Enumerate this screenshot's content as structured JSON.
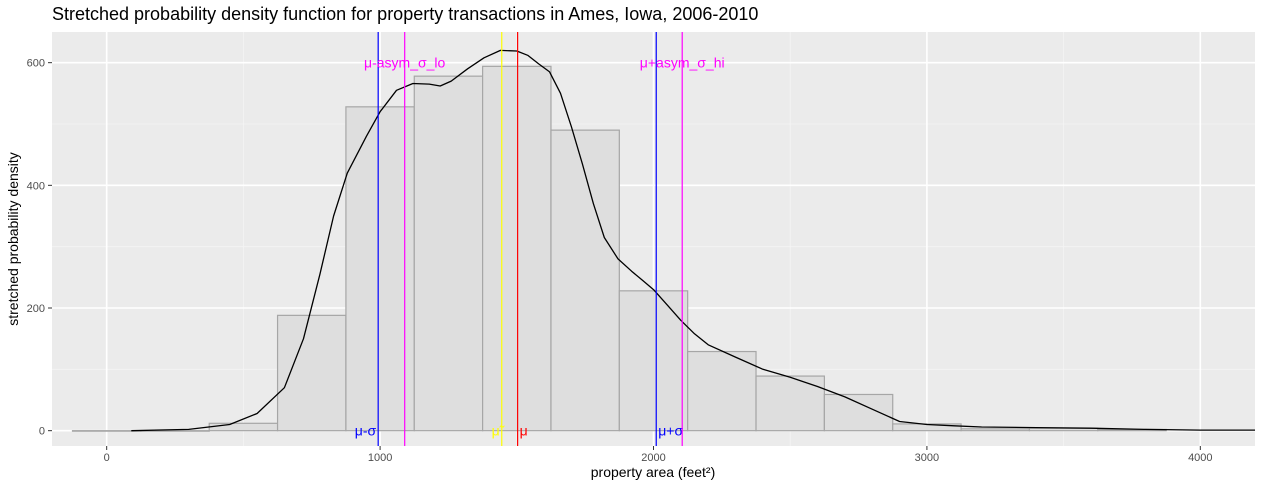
{
  "chart_data": {
    "type": "bar",
    "title": "Stretched probability density function for property transactions in Ames, Iowa, 2006-2010",
    "xlabel": "property area (feet²)",
    "ylabel": "stretched probability density",
    "xlim": [
      -200,
      4200
    ],
    "ylim": [
      -25,
      650
    ],
    "x_ticks": [
      0,
      1000,
      2000,
      3000,
      4000
    ],
    "y_ticks": [
      0,
      200,
      400,
      600
    ],
    "grid": true,
    "histogram": {
      "bin_width": 250,
      "bins": [
        {
          "start": -125,
          "end": 125,
          "count": 0
        },
        {
          "start": 125,
          "end": 375,
          "count": 0
        },
        {
          "start": 375,
          "end": 625,
          "count": 12
        },
        {
          "start": 625,
          "end": 875,
          "count": 188
        },
        {
          "start": 875,
          "end": 1125,
          "count": 528
        },
        {
          "start": 1125,
          "end": 1375,
          "count": 578
        },
        {
          "start": 1375,
          "end": 1625,
          "count": 594
        },
        {
          "start": 1625,
          "end": 1875,
          "count": 490
        },
        {
          "start": 1875,
          "end": 2125,
          "count": 228
        },
        {
          "start": 2125,
          "end": 2375,
          "count": 129
        },
        {
          "start": 2375,
          "end": 2625,
          "count": 89
        },
        {
          "start": 2625,
          "end": 2875,
          "count": 59
        },
        {
          "start": 2875,
          "end": 3125,
          "count": 11
        },
        {
          "start": 3125,
          "end": 3375,
          "count": 3
        },
        {
          "start": 3375,
          "end": 3625,
          "count": 4
        },
        {
          "start": 3625,
          "end": 3875,
          "count": 2
        }
      ],
      "fill": "#dedede",
      "stroke": "#a6a6a6"
    },
    "density_curve": {
      "color": "#000000",
      "points": [
        [
          90,
          0
        ],
        [
          300,
          2
        ],
        [
          450,
          10
        ],
        [
          550,
          28
        ],
        [
          650,
          70
        ],
        [
          720,
          150
        ],
        [
          780,
          255
        ],
        [
          830,
          350
        ],
        [
          880,
          420
        ],
        [
          950,
          480
        ],
        [
          1000,
          520
        ],
        [
          1060,
          555
        ],
        [
          1120,
          566
        ],
        [
          1180,
          565
        ],
        [
          1220,
          562
        ],
        [
          1260,
          570
        ],
        [
          1320,
          590
        ],
        [
          1380,
          608
        ],
        [
          1440,
          620
        ],
        [
          1500,
          619
        ],
        [
          1540,
          612
        ],
        [
          1580,
          598
        ],
        [
          1620,
          585
        ],
        [
          1660,
          550
        ],
        [
          1700,
          495
        ],
        [
          1740,
          435
        ],
        [
          1780,
          370
        ],
        [
          1820,
          315
        ],
        [
          1870,
          280
        ],
        [
          1920,
          260
        ],
        [
          1960,
          245
        ],
        [
          2000,
          230
        ],
        [
          2050,
          205
        ],
        [
          2100,
          180
        ],
        [
          2150,
          158
        ],
        [
          2200,
          140
        ],
        [
          2300,
          120
        ],
        [
          2400,
          100
        ],
        [
          2500,
          87
        ],
        [
          2600,
          72
        ],
        [
          2700,
          55
        ],
        [
          2800,
          35
        ],
        [
          2900,
          15
        ],
        [
          3000,
          10
        ],
        [
          3100,
          8
        ],
        [
          3200,
          6
        ],
        [
          3400,
          5
        ],
        [
          3600,
          4
        ],
        [
          3800,
          2
        ],
        [
          4000,
          1
        ],
        [
          4200,
          1
        ]
      ]
    },
    "reference_lines": [
      {
        "x": 993,
        "color": "#0000ff",
        "label": "μ-σ",
        "label_pos": "bottom-left"
      },
      {
        "x": 1090,
        "color": "#ff00ff",
        "label": "μ-asym_σ_lo",
        "label_pos": "top-center"
      },
      {
        "x": 1445,
        "color": "#ffff00",
        "label": "μ̃",
        "label_pos": "bottom-left"
      },
      {
        "x": 1503,
        "color": "#ff0000",
        "label": "μ",
        "label_pos": "bottom-right"
      },
      {
        "x": 2010,
        "color": "#0000ff",
        "label": "μ+σ",
        "label_pos": "bottom-right"
      },
      {
        "x": 2105,
        "color": "#ff00ff",
        "label": "μ+asym_σ_hi",
        "label_pos": "top-center"
      }
    ]
  }
}
